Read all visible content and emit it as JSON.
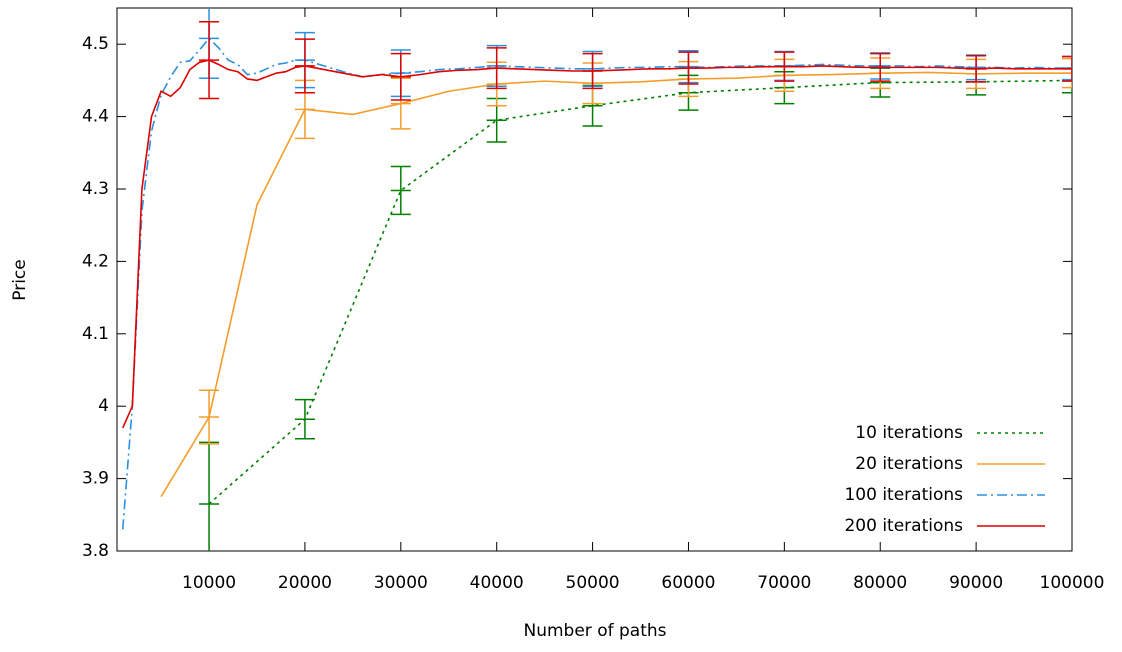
{
  "chart_data": {
    "type": "line",
    "xlabel": "Number of paths",
    "ylabel": "Price",
    "xlim": [
      400,
      100000
    ],
    "ylim": [
      3.8,
      4.55
    ],
    "xticks": [
      10000,
      20000,
      30000,
      40000,
      50000,
      60000,
      70000,
      80000,
      90000,
      100000
    ],
    "yticks": [
      3.8,
      3.9,
      4,
      4.1,
      4.2,
      4.3,
      4.4,
      4.5
    ],
    "legend": "bottom-right",
    "series": [
      {
        "name": "10 iterations",
        "color": "#008000",
        "dash": "dotted",
        "x": [
          10000,
          20000,
          30000,
          40000,
          50000,
          60000,
          70000,
          80000,
          90000,
          100000
        ],
        "values": [
          3.865,
          3.982,
          4.298,
          4.395,
          4.415,
          4.433,
          4.44,
          4.447,
          4.448,
          4.45
        ],
        "errors": [
          0.085,
          0.027,
          0.033,
          0.03,
          0.028,
          0.024,
          0.022,
          0.02,
          0.018,
          0.017
        ]
      },
      {
        "name": "20 iterations",
        "color": "#f59d2a",
        "dash": "solid",
        "x": [
          5000,
          10000,
          15000,
          20000,
          25000,
          30000,
          35000,
          40000,
          45000,
          50000,
          55000,
          60000,
          65000,
          70000,
          75000,
          80000,
          85000,
          90000,
          95000,
          100000
        ],
        "values": [
          3.875,
          3.985,
          4.278,
          4.41,
          4.403,
          4.418,
          4.435,
          4.445,
          4.449,
          4.446,
          4.448,
          4.452,
          4.453,
          4.457,
          4.458,
          4.46,
          4.461,
          4.459,
          4.46,
          4.46
        ],
        "errors": [
          null,
          0.037,
          null,
          0.04,
          null,
          0.035,
          null,
          0.03,
          null,
          0.028,
          null,
          0.024,
          null,
          0.022,
          null,
          0.021,
          null,
          0.02,
          null,
          0.02
        ]
      },
      {
        "name": "100 iterations",
        "color": "#2a90e0",
        "dash": "dash-dot",
        "x": [
          1000,
          2000,
          3000,
          4000,
          5000,
          6000,
          7000,
          8000,
          9000,
          10000,
          11000,
          12000,
          13000,
          14000,
          15000,
          16000,
          17000,
          18000,
          19000,
          20000,
          22000,
          24000,
          26000,
          28000,
          30000,
          32000,
          34000,
          36000,
          38000,
          40000,
          42000,
          44000,
          46000,
          48000,
          50000,
          52000,
          54000,
          56000,
          58000,
          60000,
          62000,
          64000,
          66000,
          68000,
          70000,
          72000,
          74000,
          76000,
          78000,
          80000,
          82000,
          84000,
          86000,
          88000,
          90000,
          92000,
          94000,
          96000,
          98000,
          100000
        ],
        "values": [
          3.83,
          4.0,
          4.27,
          4.38,
          4.43,
          4.455,
          4.475,
          4.477,
          4.492,
          4.508,
          4.495,
          4.478,
          4.472,
          4.458,
          4.46,
          4.466,
          4.472,
          4.474,
          4.478,
          4.478,
          4.47,
          4.462,
          4.455,
          4.458,
          4.46,
          4.462,
          4.465,
          4.466,
          4.468,
          4.47,
          4.469,
          4.468,
          4.467,
          4.466,
          4.466,
          4.467,
          4.468,
          4.468,
          4.469,
          4.469,
          4.468,
          4.469,
          4.47,
          4.47,
          4.47,
          4.471,
          4.472,
          4.471,
          4.47,
          4.47,
          4.47,
          4.469,
          4.47,
          4.469,
          4.468,
          4.468,
          4.467,
          4.468,
          4.467,
          4.467
        ],
        "errors": [
          null,
          null,
          null,
          null,
          null,
          null,
          null,
          null,
          null,
          0.055,
          null,
          null,
          null,
          null,
          null,
          null,
          null,
          null,
          null,
          0.038,
          null,
          null,
          null,
          null,
          0.032,
          null,
          null,
          null,
          null,
          0.028,
          null,
          null,
          null,
          null,
          0.024,
          null,
          null,
          null,
          null,
          0.022,
          null,
          null,
          null,
          null,
          0.02,
          null,
          null,
          null,
          null,
          0.018,
          null,
          null,
          null,
          null,
          0.017,
          null,
          null,
          null,
          null,
          0.016
        ]
      },
      {
        "name": "200 iterations",
        "color": "#e00000",
        "dash": "solid",
        "x": [
          1000,
          2000,
          3000,
          4000,
          5000,
          6000,
          7000,
          8000,
          9000,
          10000,
          11000,
          12000,
          13000,
          14000,
          15000,
          16000,
          17000,
          18000,
          19000,
          20000,
          22000,
          24000,
          26000,
          28000,
          30000,
          32000,
          34000,
          36000,
          38000,
          40000,
          42000,
          44000,
          46000,
          48000,
          50000,
          52000,
          54000,
          56000,
          58000,
          60000,
          62000,
          64000,
          66000,
          68000,
          70000,
          72000,
          74000,
          76000,
          78000,
          80000,
          82000,
          84000,
          86000,
          88000,
          90000,
          92000,
          94000,
          96000,
          98000,
          100000
        ],
        "values": [
          3.97,
          4.0,
          4.3,
          4.4,
          4.435,
          4.428,
          4.44,
          4.465,
          4.475,
          4.478,
          4.472,
          4.465,
          4.462,
          4.452,
          4.45,
          4.455,
          4.46,
          4.462,
          4.468,
          4.47,
          4.465,
          4.46,
          4.455,
          4.458,
          4.455,
          4.458,
          4.462,
          4.464,
          4.465,
          4.467,
          4.466,
          4.465,
          4.464,
          4.463,
          4.463,
          4.464,
          4.465,
          4.466,
          4.466,
          4.467,
          4.467,
          4.468,
          4.468,
          4.469,
          4.469,
          4.469,
          4.47,
          4.469,
          4.468,
          4.468,
          4.468,
          4.468,
          4.468,
          4.467,
          4.466,
          4.467,
          4.466,
          4.466,
          4.466,
          4.466
        ],
        "errors": [
          null,
          null,
          null,
          null,
          null,
          null,
          null,
          null,
          null,
          0.053,
          null,
          null,
          null,
          null,
          null,
          null,
          null,
          null,
          null,
          0.037,
          null,
          null,
          null,
          null,
          0.032,
          null,
          null,
          null,
          null,
          0.028,
          null,
          null,
          null,
          null,
          0.024,
          null,
          null,
          null,
          null,
          0.022,
          null,
          null,
          null,
          null,
          0.02,
          null,
          null,
          null,
          null,
          0.019,
          null,
          null,
          null,
          null,
          0.018,
          null,
          null,
          null,
          null,
          0.017
        ]
      }
    ]
  }
}
